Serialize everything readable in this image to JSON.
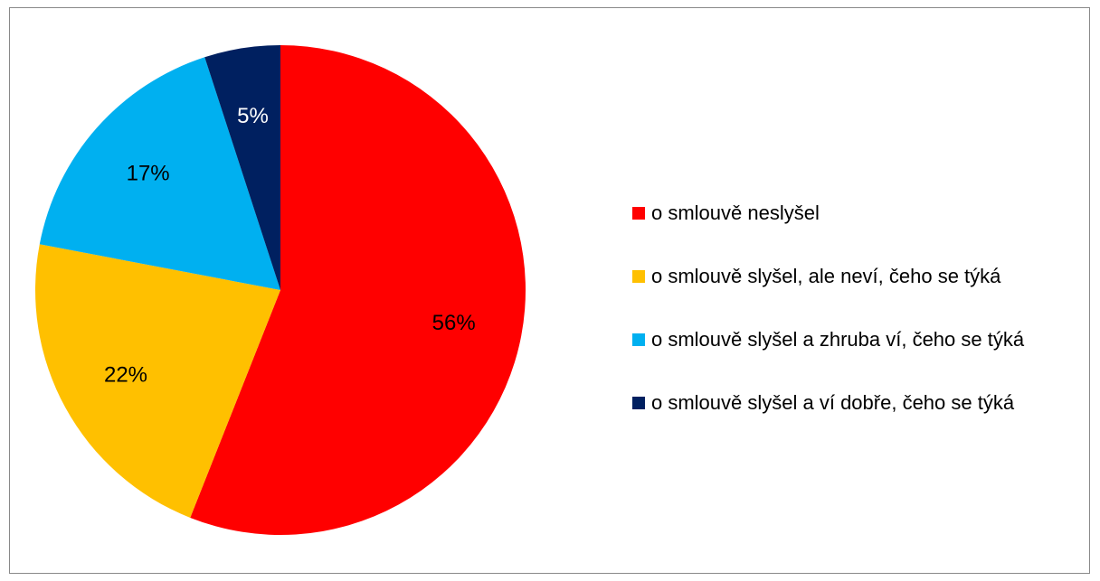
{
  "chart_data": {
    "type": "pie",
    "title": "",
    "legend_position": "right",
    "slices": [
      {
        "label": "o smlouvě neslyšel",
        "value": 56,
        "display": "56%",
        "color": "#FF0000",
        "label_color": "#000000"
      },
      {
        "label": "o smlouvě slyšel, ale neví, čeho se týká",
        "value": 22,
        "display": "22%",
        "color": "#FFC000",
        "label_color": "#000000"
      },
      {
        "label": "o smlouvě slyšel a zhruba ví, čeho se týká",
        "value": 17,
        "display": "17%",
        "color": "#00B0F0",
        "label_color": "#000000"
      },
      {
        "label": "o smlouvě slyšel a ví dobře, čeho se týká",
        "value": 5,
        "display": "5%",
        "color": "#002060",
        "label_color": "#FFFFFF"
      }
    ]
  }
}
